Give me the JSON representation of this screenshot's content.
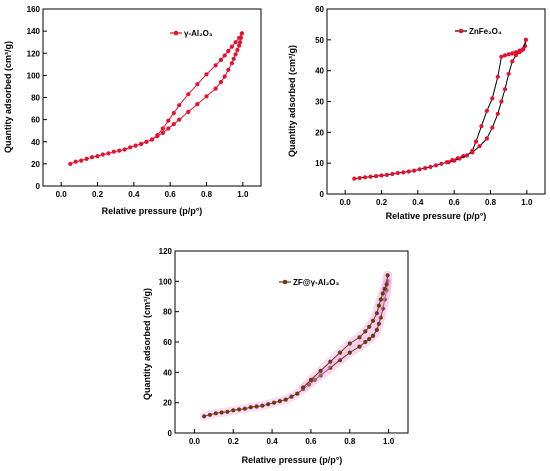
{
  "chart_data": [
    {
      "id": "a",
      "type": "line",
      "xlabel": "Relative pressure (p/p°)",
      "ylabel": "Quantity adsorbed (cm³/g)",
      "xlim": [
        -0.1,
        1.1
      ],
      "ylim": [
        0,
        160
      ],
      "xticks": [
        "0.0",
        "0.2",
        "0.4",
        "0.6",
        "0.8",
        "1.0"
      ],
      "yticks": [
        "0",
        "20",
        "40",
        "60",
        "80",
        "100",
        "120",
        "140",
        "160"
      ],
      "legend": "γ-Al₂O₃",
      "legend_position": "top-right",
      "series": [
        {
          "name": "γ-Al₂O₃",
          "color": "#e8102e",
          "marker_color": "#e8102e",
          "adsorption": {
            "x": [
              0.05,
              0.08,
              0.11,
              0.14,
              0.17,
              0.2,
              0.23,
              0.26,
              0.29,
              0.32,
              0.35,
              0.38,
              0.41,
              0.44,
              0.47,
              0.5,
              0.53,
              0.56,
              0.59,
              0.62,
              0.65,
              0.7,
              0.75,
              0.8,
              0.85,
              0.88,
              0.9,
              0.92,
              0.94,
              0.95,
              0.96,
              0.97,
              0.98,
              0.985,
              0.99,
              0.995
            ],
            "y": [
              20,
              22,
              23,
              24.5,
              26,
              27,
              28.5,
              29.5,
              31,
              32,
              33,
              35,
              36.5,
              38,
              40,
              42,
              45,
              48,
              52,
              56,
              60,
              67,
              74,
              81,
              88,
              94,
              99,
              105,
              111,
              115,
              119,
              123,
              127,
              130,
              134,
              138
            ]
          },
          "desorption": {
            "x": [
              0.995,
              0.98,
              0.96,
              0.94,
              0.92,
              0.9,
              0.88,
              0.85,
              0.8,
              0.75,
              0.7,
              0.65,
              0.62,
              0.59,
              0.56,
              0.53,
              0.5,
              0.47,
              0.44
            ],
            "y": [
              138,
              134,
              130,
              126,
              122,
              118,
              114,
              109,
              101,
              92,
              83,
              73,
              66,
              59,
              52,
              46,
              42,
              40,
              38
            ]
          }
        }
      ]
    },
    {
      "id": "b",
      "type": "line",
      "xlabel": "Relative pressure (p/p°)",
      "ylabel": "Quantity adsorbed (cm³/g)",
      "xlim": [
        -0.1,
        1.1
      ],
      "ylim": [
        0,
        60
      ],
      "xticks": [
        "0.0",
        "0.2",
        "0.4",
        "0.6",
        "0.8",
        "1.0"
      ],
      "yticks": [
        "0",
        "10",
        "20",
        "30",
        "40",
        "50",
        "60"
      ],
      "legend": "ZnFe₂O₄",
      "legend_position": "top-right",
      "series": [
        {
          "name": "ZnFe₂O₄",
          "color": "#000000",
          "marker_color": "#e8102e",
          "adsorption": {
            "x": [
              0.05,
              0.08,
              0.11,
              0.14,
              0.17,
              0.2,
              0.23,
              0.26,
              0.29,
              0.32,
              0.35,
              0.38,
              0.41,
              0.44,
              0.47,
              0.5,
              0.53,
              0.56,
              0.59,
              0.62,
              0.65,
              0.7,
              0.74,
              0.78,
              0.81,
              0.84,
              0.86,
              0.88,
              0.9,
              0.92,
              0.94,
              0.96,
              0.97,
              0.98,
              0.99,
              0.995
            ],
            "y": [
              5,
              5.2,
              5.4,
              5.6,
              5.8,
              6,
              6.2,
              6.5,
              6.8,
              7,
              7.3,
              7.6,
              8,
              8.4,
              8.8,
              9.3,
              9.8,
              10.3,
              11,
              11.6,
              12.3,
              13.5,
              15.5,
              18,
              21.5,
              26,
              30,
              34,
              39,
              43,
              45,
              46,
              46.5,
              47,
              48,
              50
            ]
          },
          "desorption": {
            "x": [
              0.995,
              0.98,
              0.96,
              0.94,
              0.92,
              0.9,
              0.88,
              0.86,
              0.84,
              0.81,
              0.78,
              0.75,
              0.72,
              0.7,
              0.67,
              0.63,
              0.6,
              0.57
            ],
            "y": [
              50,
              47,
              46.5,
              46,
              45.6,
              45.3,
              45,
              44.5,
              38,
              31,
              27,
              22,
              17,
              14,
              12.5,
              11.5,
              10.8,
              10.3
            ]
          }
        }
      ]
    },
    {
      "id": "c",
      "type": "line",
      "xlabel": "Relative pressure (p/p°)",
      "ylabel": "Quantity adsorbed (cm³/g)",
      "xlim": [
        -0.1,
        1.1
      ],
      "ylim": [
        0,
        120
      ],
      "xticks": [
        "0.0",
        "0.2",
        "0.4",
        "0.6",
        "0.8",
        "1.0"
      ],
      "yticks": [
        "0",
        "20",
        "40",
        "60",
        "80",
        "100",
        "120"
      ],
      "legend": "ZF@γ-Al₂O₃",
      "legend_position": "top-right",
      "series": [
        {
          "name": "ZF@γ-Al₂O₃",
          "color": "#6b3a12",
          "marker_color": "#6b3a12",
          "adsorption": {
            "x": [
              0.05,
              0.08,
              0.11,
              0.14,
              0.17,
              0.2,
              0.23,
              0.26,
              0.29,
              0.32,
              0.35,
              0.38,
              0.41,
              0.44,
              0.47,
              0.5,
              0.53,
              0.56,
              0.59,
              0.62,
              0.65,
              0.7,
              0.75,
              0.8,
              0.85,
              0.88,
              0.9,
              0.92,
              0.94,
              0.95,
              0.96,
              0.97,
              0.98,
              0.99,
              0.995
            ],
            "y": [
              11,
              12,
              13,
              13.5,
              14,
              15,
              15.5,
              16,
              17,
              17.5,
              18,
              19,
              20,
              21,
              22,
              24,
              26,
              29,
              32,
              35,
              38,
              43,
              48,
              53,
              57,
              60,
              62,
              64,
              68,
              72,
              76,
              82,
              88,
              94,
              100
            ]
          },
          "desorption": {
            "x": [
              0.995,
              0.99,
              0.98,
              0.97,
              0.96,
              0.95,
              0.94,
              0.92,
              0.9,
              0.88,
              0.85,
              0.8,
              0.75,
              0.7,
              0.65,
              0.6,
              0.56
            ],
            "y": [
              104,
              98,
              95,
              92,
              88,
              84,
              79,
              74,
              70,
              67,
              63,
              59,
              53,
              47,
              41,
              35,
              30
            ]
          }
        }
      ]
    }
  ]
}
